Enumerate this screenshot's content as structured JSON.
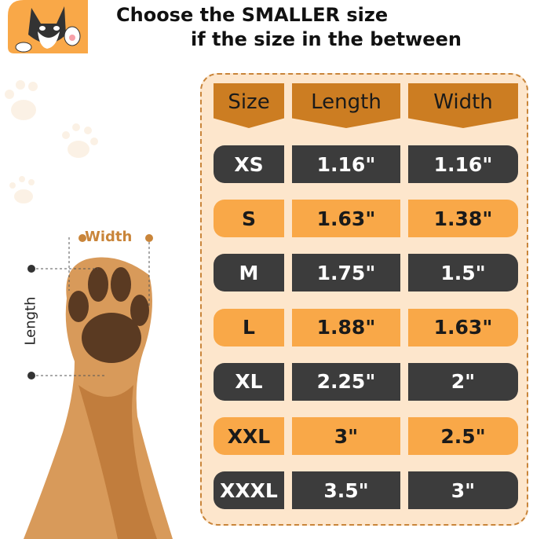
{
  "title": {
    "line1": "Choose the SMALLER size",
    "line2": "if the size in the between"
  },
  "diagram": {
    "width_label": "Width",
    "length_label": "Length"
  },
  "table": {
    "headers": [
      "Size",
      "Length",
      "Width"
    ],
    "rows": [
      {
        "size": "XS",
        "length": "1.16\"",
        "width": "1.16\"",
        "style": "dark"
      },
      {
        "size": "S",
        "length": "1.63\"",
        "width": "1.38\"",
        "style": "orange"
      },
      {
        "size": "M",
        "length": "1.75\"",
        "width": "1.5\"",
        "style": "dark"
      },
      {
        "size": "L",
        "length": "1.88\"",
        "width": "1.63\"",
        "style": "orange"
      },
      {
        "size": "XL",
        "length": "2.25\"",
        "width": "2\"",
        "style": "dark"
      },
      {
        "size": "XXL",
        "length": "3\"",
        "width": "2.5\"",
        "style": "orange"
      },
      {
        "size": "XXXL",
        "length": "3.5\"",
        "width": "3\"",
        "style": "dark"
      }
    ]
  },
  "colors": {
    "header": "#cc7d22",
    "dark": "#3c3c3c",
    "orange": "#f9a848",
    "panel": "#fde6cc",
    "accent": "#c9853a"
  }
}
